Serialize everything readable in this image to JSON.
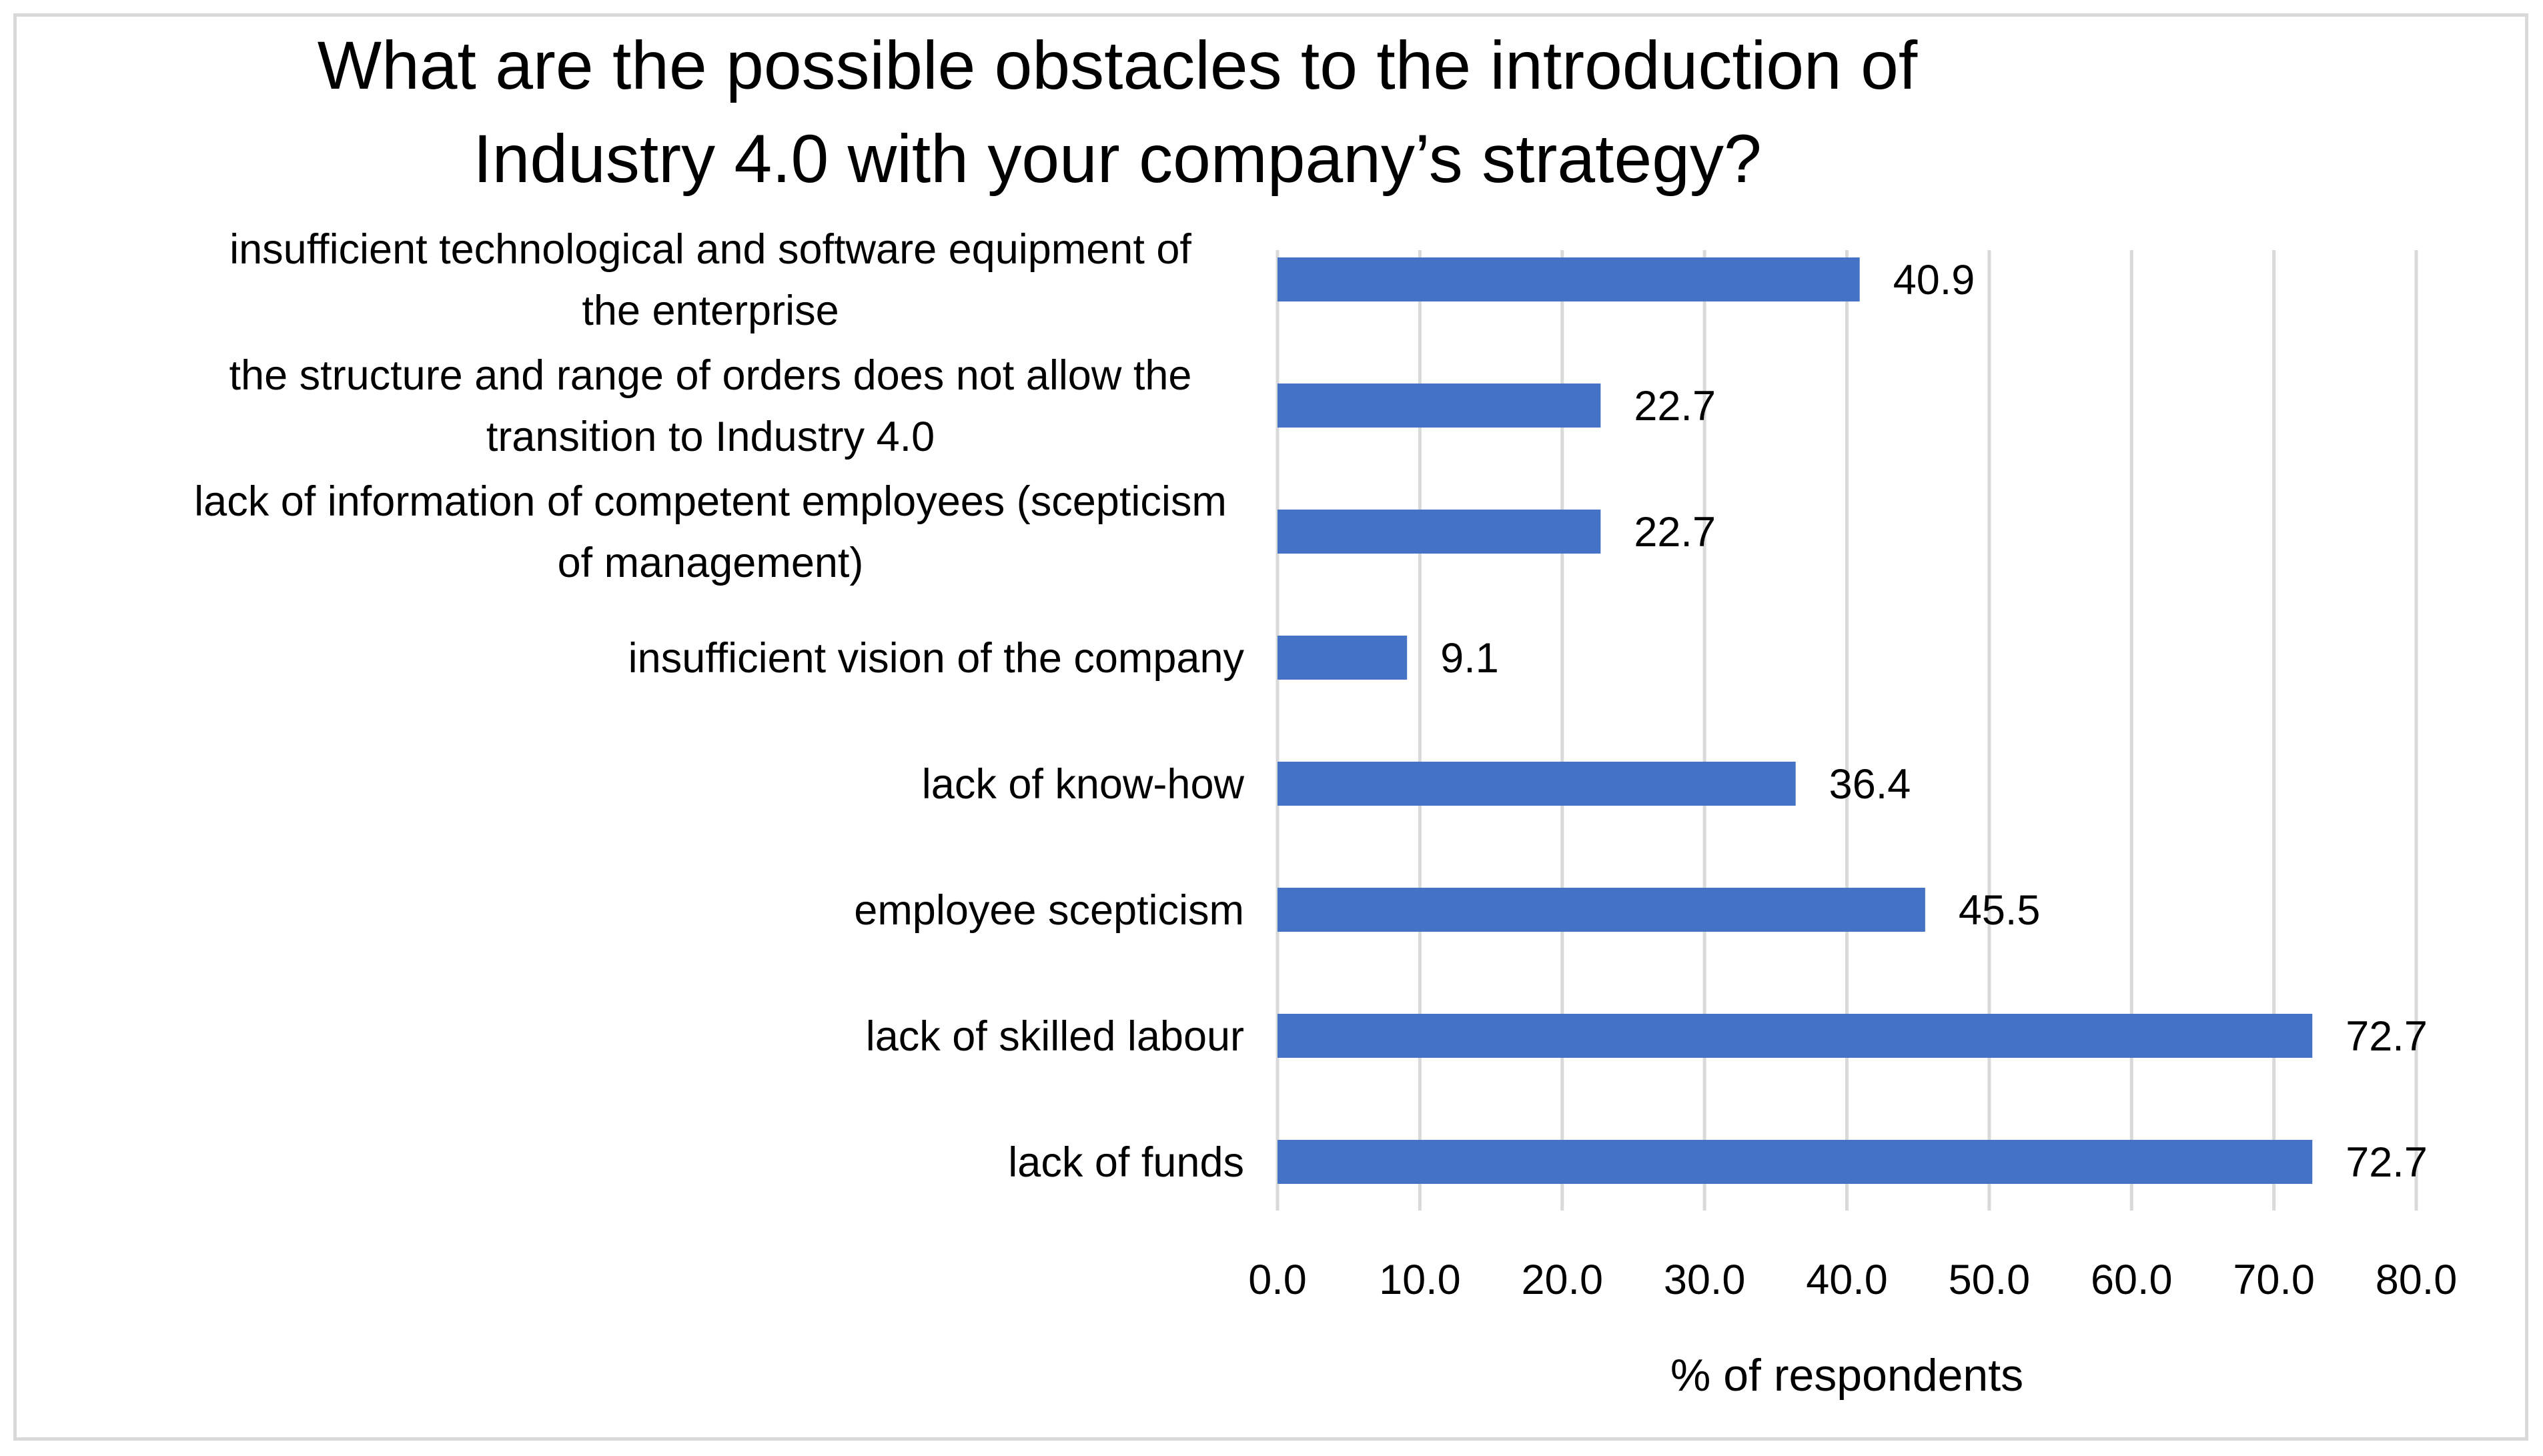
{
  "chart_data": {
    "type": "bar",
    "orientation": "horizontal",
    "title_lines": [
      "What are the possible obstacles to the introduction of",
      "Industry 4.0 with your company’s strategy?"
    ],
    "categories": [
      [
        "insufficient technological and software equipment of",
        "the enterprise"
      ],
      [
        "the structure and range of orders does not allow the",
        "transition to Industry 4.0"
      ],
      [
        "lack of information of competent employees (scepticism",
        "of management)"
      ],
      [
        "insufficient vision of the company"
      ],
      [
        "lack of know-how"
      ],
      [
        "employee scepticism"
      ],
      [
        "lack of skilled labour"
      ],
      [
        "lack of funds"
      ]
    ],
    "values": [
      40.9,
      22.7,
      22.7,
      9.1,
      36.4,
      45.5,
      72.7,
      72.7
    ],
    "value_labels": [
      "40.9",
      "22.7",
      "22.7",
      "9.1",
      "36.4",
      "45.5",
      "72.7",
      "72.7"
    ],
    "xlim": [
      0,
      80
    ],
    "x_ticks": [
      0,
      10,
      20,
      30,
      40,
      50,
      60,
      70,
      80
    ],
    "x_tick_labels": [
      "0.0",
      "10.0",
      "20.0",
      "30.0",
      "40.0",
      "50.0",
      "60.0",
      "70.0",
      "80.0"
    ],
    "xlabel": "% of respondents",
    "ylabel": "",
    "grid": "vertical",
    "legend": "none",
    "bar_color": "#4472c4",
    "grid_color": "#d9d9d9"
  }
}
